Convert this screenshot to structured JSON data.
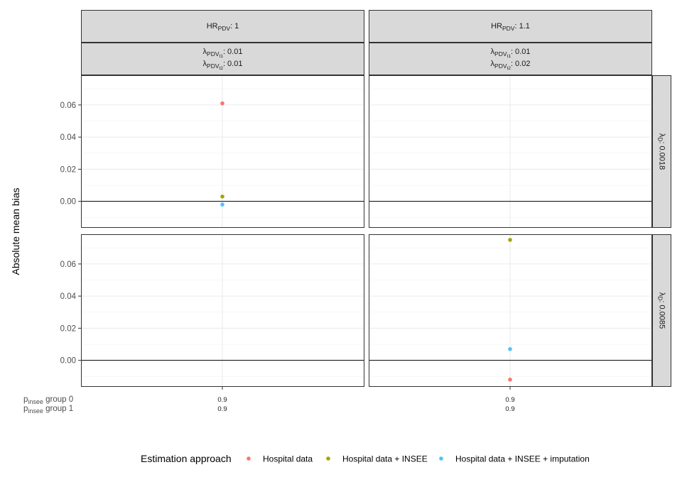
{
  "chart_data": {
    "type": "scatter",
    "ylabel": "Absolute mean bias",
    "y_ticks": [
      0.0,
      0.02,
      0.04,
      0.06
    ],
    "y_tick_labels": [
      "0.00",
      "0.02",
      "0.04",
      "0.06"
    ],
    "ylim": [
      -0.0165,
      0.0785
    ],
    "x_category": "0.9",
    "columns": [
      {
        "hr_base": "HR",
        "hr_sub": "PDV",
        "hr_value": ": 1",
        "l1_base": "λ",
        "l1_sub": "PDV",
        "l1_subsub": "t1",
        "l1_value": ": 0.01",
        "l2_base": "λ",
        "l2_sub": "PDV",
        "l2_subsub": "t2",
        "l2_value": ": 0.01",
        "x_labels": [
          "0.9",
          "0.9"
        ]
      },
      {
        "hr_base": "HR",
        "hr_sub": "PDV",
        "hr_value": ": 1.1",
        "l1_base": "λ",
        "l1_sub": "PDV",
        "l1_subsub": "t1",
        "l1_value": ": 0.01",
        "l2_base": "λ",
        "l2_sub": "PDV",
        "l2_subsub": "t2",
        "l2_value": ": 0.02",
        "x_labels": [
          "0.9",
          "0.9"
        ]
      }
    ],
    "rows": [
      {
        "base": "λ",
        "sub": "D",
        "value": ": 0.0018"
      },
      {
        "base": "λ",
        "sub": "D",
        "value": ": 0.0085"
      }
    ],
    "row_table_labels": [
      {
        "base": "p",
        "sub": "insee",
        "value": " group 0"
      },
      {
        "base": "p",
        "sub": "insee",
        "value": " group 1"
      }
    ],
    "series": [
      {
        "name": "Hospital data",
        "color": "#F8766D",
        "points": [
          {
            "row": 0,
            "col": 0,
            "y": 0.061
          },
          {
            "row": 1,
            "col": 1,
            "y": -0.012
          }
        ]
      },
      {
        "name": "Hospital data + INSEE",
        "color": "#A3A500",
        "points": [
          {
            "row": 0,
            "col": 0,
            "y": 0.003
          },
          {
            "row": 1,
            "col": 1,
            "y": 0.075
          }
        ]
      },
      {
        "name": "Hospital data + INSEE + imputation",
        "color": "#4FC3F7",
        "points": [
          {
            "row": 0,
            "col": 0,
            "y": -0.002
          },
          {
            "row": 1,
            "col": 1,
            "y": 0.007
          }
        ]
      }
    ],
    "legend": {
      "title": "Estimation approach",
      "position": "bottom"
    },
    "grid": true
  }
}
